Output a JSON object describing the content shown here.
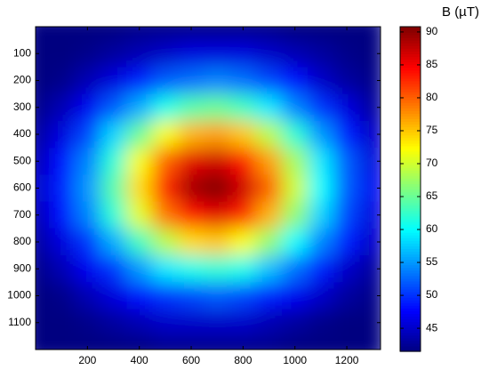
{
  "chart_data": {
    "type": "heatmap",
    "colormap": "jet",
    "x": [
      0,
      100,
      200,
      300,
      400,
      500,
      600,
      700,
      800,
      900,
      1000,
      1100,
      1200,
      1300
    ],
    "y": [
      0,
      100,
      200,
      300,
      400,
      500,
      600,
      700,
      800,
      900,
      1000,
      1100,
      1200
    ],
    "z": [
      [
        40,
        40,
        41,
        41,
        42,
        42,
        42,
        42,
        42,
        42,
        41,
        41,
        41,
        40
      ],
      [
        41,
        41,
        42,
        43,
        44,
        45,
        46,
        46,
        46,
        45,
        44,
        43,
        42,
        41
      ],
      [
        41,
        42,
        44,
        46,
        49,
        52,
        53,
        54,
        53,
        51,
        48,
        45,
        43,
        42
      ],
      [
        42,
        44,
        47,
        52,
        56,
        61,
        64,
        65,
        63,
        59,
        54,
        50,
        46,
        43
      ],
      [
        43,
        46,
        51,
        58,
        65,
        72,
        76,
        77,
        75,
        69,
        62,
        55,
        49,
        45
      ],
      [
        44,
        48,
        54,
        62,
        72,
        80,
        86,
        87,
        84,
        77,
        68,
        59,
        52,
        46
      ],
      [
        45,
        49,
        55,
        64,
        74,
        83,
        89,
        91,
        87,
        80,
        70,
        60,
        52,
        47
      ],
      [
        44,
        48,
        54,
        62,
        71,
        79,
        84,
        86,
        83,
        76,
        67,
        58,
        51,
        46
      ],
      [
        43,
        46,
        50,
        56,
        63,
        69,
        74,
        75,
        72,
        67,
        60,
        54,
        49,
        45
      ],
      [
        42,
        44,
        47,
        50,
        55,
        59,
        61,
        62,
        61,
        57,
        53,
        49,
        45,
        43
      ],
      [
        41,
        42,
        44,
        46,
        48,
        50,
        51,
        52,
        51,
        49,
        47,
        45,
        43,
        42
      ],
      [
        40,
        41,
        42,
        43,
        44,
        45,
        45,
        45,
        45,
        44,
        43,
        42,
        41,
        41
      ],
      [
        40,
        40,
        41,
        41,
        41,
        42,
        42,
        42,
        42,
        42,
        41,
        41,
        41,
        40
      ]
    ],
    "xlim": [
      0,
      1330
    ],
    "xticks": [
      200,
      400,
      600,
      800,
      1000,
      1200
    ],
    "ylim": [
      0,
      1200
    ],
    "yticks": [
      100,
      200,
      300,
      400,
      500,
      600,
      700,
      800,
      900,
      1000,
      1100
    ],
    "clim": [
      41.5,
      90.8
    ],
    "cticks": [
      45,
      50,
      55,
      60,
      65,
      70,
      75,
      80,
      85,
      90
    ],
    "colorbar_label": "B (µT)"
  }
}
